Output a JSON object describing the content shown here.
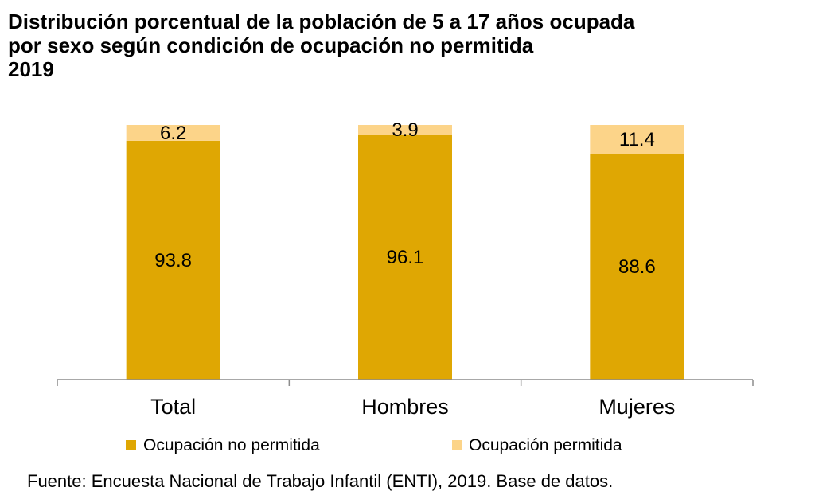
{
  "title": {
    "line1": "Distribución porcentual de la población de 5 a 17 años ocupada",
    "line2": "por sexo según condición de ocupación no permitida",
    "line3": "2019"
  },
  "source": "Fuente: Encuesta Nacional de Trabajo Infantil (ENTI), 2019. Base de datos.",
  "colors": {
    "no_permitida": "#DFA703",
    "permitida": "#FCD489"
  },
  "chart_data": {
    "type": "bar",
    "stacked": true,
    "categories": [
      "Total",
      "Hombres",
      "Mujeres"
    ],
    "series": [
      {
        "name": "Ocupación no permitida",
        "values": [
          93.8,
          96.1,
          88.6
        ],
        "color": "#DFA703"
      },
      {
        "name": "Ocupación permitida",
        "values": [
          6.2,
          3.9,
          11.4
        ],
        "color": "#FCD489"
      }
    ],
    "value_labels": [
      [
        "93.8",
        "96.1",
        "88.6"
      ],
      [
        "6.2",
        "3.9",
        "11.4"
      ]
    ],
    "ylim": [
      0,
      100
    ],
    "legend": "bottom",
    "grid": false
  }
}
